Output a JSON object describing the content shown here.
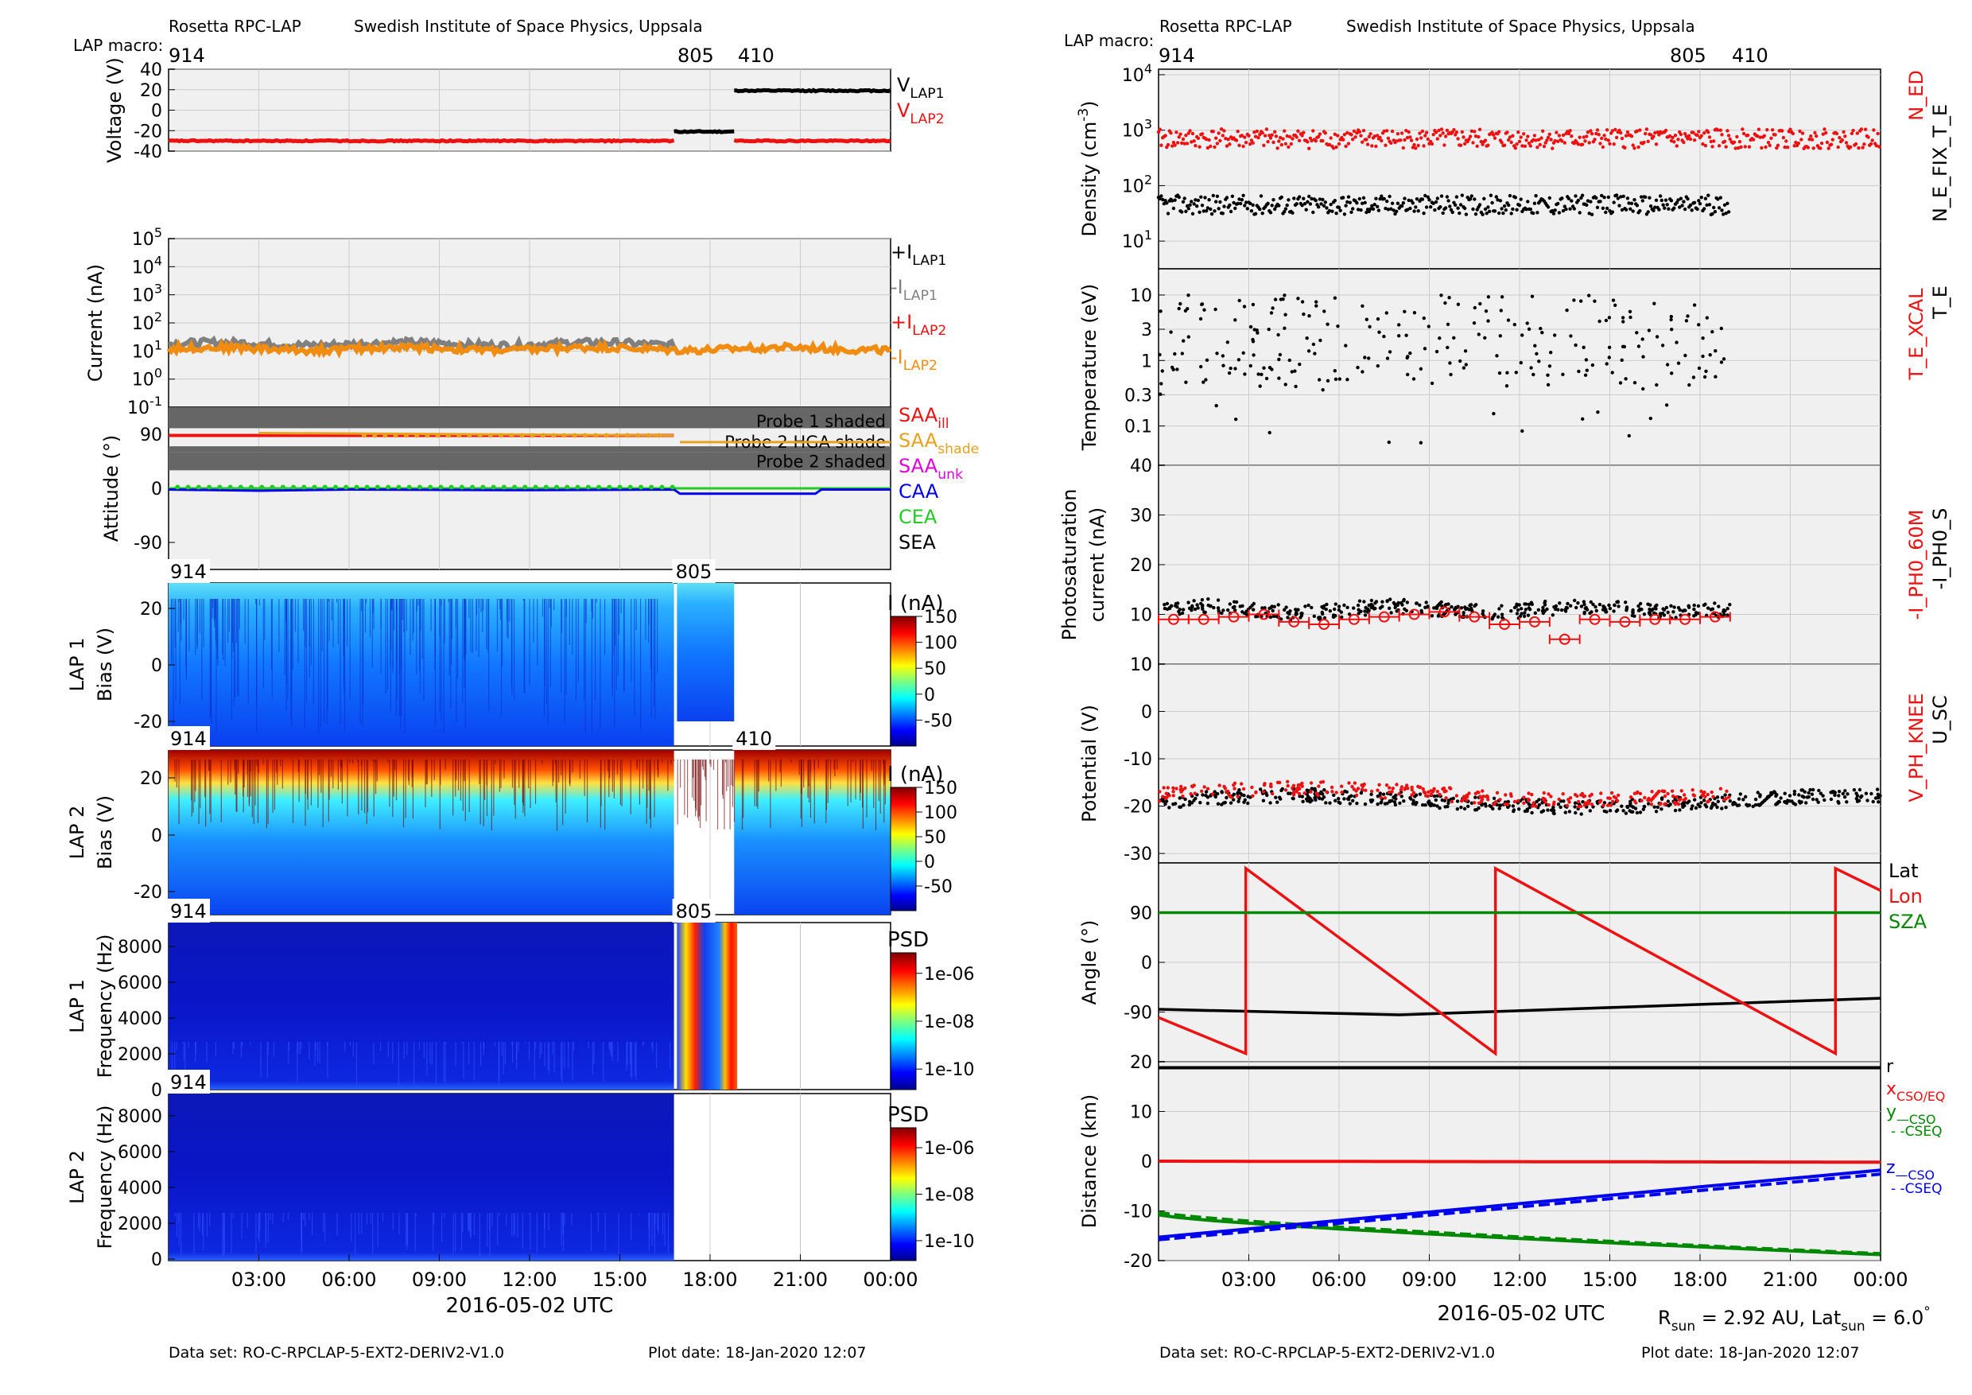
{
  "header": {
    "instrument": "Rosetta RPC-LAP",
    "institute": "Swedish Institute of Space Physics, Uppsala",
    "macro_label": "LAP macro:",
    "macros": [
      {
        "label": "914",
        "t": 0
      },
      {
        "label": "805",
        "t": 16.8
      },
      {
        "label": "410",
        "t": 18.8
      }
    ]
  },
  "footer": {
    "dataset": "Data set: RO-C-RPCLAP-5-EXT2-DERIV2-V1.0",
    "plotdate": "Plot date: 18-Jan-2020 12:07",
    "rsun": "R",
    "rsun_sub": "sun",
    "rsun_val": " = 2.92 AU, Lat",
    "latsun_sub": "sun",
    "latsun_val": " = 6.0",
    "latsun_unit": "°"
  },
  "time_axis": {
    "xlabel": "2016-05-02 UTC",
    "range_hours": [
      0,
      24
    ],
    "ticks": [
      {
        "t": 3,
        "label": "03:00"
      },
      {
        "t": 6,
        "label": "06:00"
      },
      {
        "t": 9,
        "label": "09:00"
      },
      {
        "t": 12,
        "label": "12:00"
      },
      {
        "t": 15,
        "label": "15:00"
      },
      {
        "t": 18,
        "label": "18:00"
      },
      {
        "t": 21,
        "label": "21:00"
      },
      {
        "t": 24,
        "label": "00:00"
      }
    ]
  },
  "colors": {
    "red": "#ee1111",
    "black": "#000000",
    "gray": "#808080",
    "orange": "#f08c10",
    "gold": "#e8a020",
    "magenta": "#dd00dd",
    "blue": "#0000ee",
    "green": "#22cc22",
    "darkgreen": "#008800",
    "panel_bg": "#f0f0f0",
    "shade": "#666666"
  },
  "chart_data": [
    {
      "id": "voltage",
      "type": "scatter",
      "ylabel": "Voltage (V)",
      "ylim": [
        -40,
        40
      ],
      "yticks": [
        "40",
        "20",
        "0",
        "-20",
        "-40"
      ],
      "series": [
        {
          "name": "V_LAP1",
          "label_main": "V",
          "label_sub": "LAP1",
          "segments": [
            {
              "t0": 16.8,
              "t1": 18.8,
              "v": -21
            },
            {
              "t0": 18.8,
              "t1": 24,
              "v": 19
            }
          ]
        },
        {
          "name": "V_LAP2",
          "label_main": "V",
          "label_sub": "LAP2",
          "segments": [
            {
              "t0": 0,
              "t1": 16.8,
              "v": -30
            },
            {
              "t0": 18.8,
              "t1": 24,
              "v": -30
            }
          ]
        }
      ]
    },
    {
      "id": "current",
      "type": "scatter",
      "ylabel": "Current (nA)",
      "yscale": "log",
      "ylim_exp": [
        -1,
        5
      ],
      "yticks": [
        {
          "base": "10",
          "exp": "5"
        },
        {
          "base": "10",
          "exp": "4"
        },
        {
          "base": "10",
          "exp": "3"
        },
        {
          "base": "10",
          "exp": "2"
        },
        {
          "base": "10",
          "exp": "1"
        },
        {
          "base": "10",
          "exp": "0"
        },
        {
          "base": "10",
          "exp": "-1"
        }
      ],
      "series": [
        {
          "name": "+I_LAP1",
          "label_main": "+I",
          "label_sub": "LAP1",
          "t_range": [
            0,
            24
          ],
          "value": 0
        },
        {
          "name": "-I_LAP1",
          "label_main": "-I",
          "label_sub": "LAP1",
          "t_range": [
            0,
            16.8
          ],
          "value": 18
        },
        {
          "name": "+I_LAP2",
          "label_main": "+I",
          "label_sub": "LAP2",
          "t_range": [
            0,
            24
          ],
          "value": 0
        },
        {
          "name": "-I_LAP2",
          "label_main": "-I",
          "label_sub": "LAP2",
          "t_range": [
            0,
            24
          ],
          "value": 12
        }
      ]
    },
    {
      "id": "attitude",
      "type": "line",
      "ylabel": "Attitude (°)",
      "ylim": [
        -135,
        135
      ],
      "yticks": [
        "90",
        "0",
        "-90"
      ],
      "shade_labels": [
        "Probe 1 shaded",
        "Probe 2 HGA shade",
        "Probe 2 shaded"
      ],
      "legend": [
        {
          "main": "SAA",
          "sub": "ill",
          "color": "#ee1111"
        },
        {
          "main": "SAA",
          "sub": "shade",
          "color": "#e8a020"
        },
        {
          "main": "SAA",
          "sub": "unk",
          "color": "#dd00dd"
        },
        {
          "main": "CAA",
          "sub": "",
          "color": "#0000ee"
        },
        {
          "main": "CEA",
          "sub": "",
          "color": "#22cc22"
        },
        {
          "main": "SEA",
          "sub": "",
          "color": "#000000"
        }
      ]
    },
    {
      "id": "lap1_bias",
      "type": "heatmap",
      "ylabel_line1": "LAP 1",
      "ylabel_line2": "Bias (V)",
      "yticks": [
        "20",
        "0",
        "-20"
      ],
      "colorbar_label": "I (nA)",
      "colorbar_ticks": [
        "150",
        "100",
        "50",
        "0",
        "-50"
      ],
      "macro_tags": [
        "914",
        "805"
      ]
    },
    {
      "id": "lap2_bias",
      "type": "heatmap",
      "ylabel_line1": "LAP 2",
      "ylabel_line2": "Bias (V)",
      "yticks": [
        "20",
        "0",
        "-20"
      ],
      "colorbar_label": "I (nA)",
      "colorbar_ticks": [
        "150",
        "100",
        "50",
        "0",
        "-50"
      ],
      "macro_tags": [
        "914",
        "410"
      ]
    },
    {
      "id": "lap1_psd",
      "type": "heatmap",
      "ylabel_line1": "LAP 1",
      "ylabel_line2": "Frequency (Hz)",
      "yticks": [
        "8000",
        "6000",
        "4000",
        "2000",
        "0"
      ],
      "colorbar_label": "PSD",
      "colorbar_ticks": [
        "1e-06",
        "1e-08",
        "1e-10"
      ],
      "macro_tags": [
        "914",
        "805"
      ]
    },
    {
      "id": "lap2_psd",
      "type": "heatmap",
      "ylabel_line1": "LAP 2",
      "ylabel_line2": "Frequency (Hz)",
      "yticks": [
        "8000",
        "6000",
        "4000",
        "2000",
        "0"
      ],
      "colorbar_label": "PSD",
      "colorbar_ticks": [
        "1e-06",
        "1e-08",
        "1e-10"
      ],
      "macro_tags": [
        "914"
      ]
    },
    {
      "id": "density",
      "type": "scatter",
      "ylabel": "Density (cm",
      "ylabel_sup": "-3",
      "ylabel_end": ")",
      "yscale": "log",
      "yticks": [
        {
          "base": "10",
          "exp": "4"
        },
        {
          "base": "10",
          "exp": "3"
        },
        {
          "base": "10",
          "exp": "2"
        },
        {
          "base": "10",
          "exp": "1"
        }
      ],
      "series": [
        {
          "name": "N_ED",
          "t_range": [
            0,
            24
          ],
          "value": 700
        },
        {
          "name": "N_E_FIX_T_E",
          "t_range": [
            0,
            19.0
          ],
          "value": 45
        }
      ]
    },
    {
      "id": "temperature",
      "type": "scatter",
      "ylabel": "Temperature (eV)",
      "yscale": "log",
      "yticks": [
        "10",
        "3",
        "1",
        "0.3",
        "0.1"
      ],
      "series": [
        {
          "name": "T_E_XCAL",
          "t_range": [
            0,
            19.0
          ]
        },
        {
          "name": "T_E",
          "t_range": [
            0,
            19.0
          ],
          "typical": 2
        }
      ]
    },
    {
      "id": "photosaturation",
      "type": "scatter",
      "ylabel_line1": "Photosaturation",
      "ylabel_line2": "current (nA)",
      "ylim": [
        0,
        40
      ],
      "yticks": [
        "40",
        "30",
        "20",
        "10",
        "0"
      ],
      "series": [
        {
          "name": "-I_PH0_60M",
          "t": [
            0.5,
            1.5,
            2.5,
            3.5,
            4.5,
            5.5,
            6.5,
            7.5,
            8.5,
            9.5,
            10.5,
            11.5,
            12.5,
            13.5,
            14.5,
            15.5,
            16.5,
            17.5,
            18.5
          ],
          "values": [
            9,
            9,
            9.5,
            10,
            8.5,
            8,
            9,
            9.5,
            10,
            10.5,
            9.5,
            8,
            8.5,
            5,
            9,
            8.5,
            9,
            9,
            9.5
          ]
        },
        {
          "name": "-I_PH0_S",
          "t_range": [
            0,
            19.0
          ],
          "value": 11
        }
      ]
    },
    {
      "id": "potential",
      "type": "scatter",
      "ylabel": "Potential (V)",
      "ylim": [
        -32,
        10
      ],
      "yticks": [
        "10",
        "0",
        "-10",
        "-20",
        "-30"
      ],
      "series": [
        {
          "name": "V_PH_KNEE",
          "t_range": [
            0,
            19.0
          ],
          "value": -18
        },
        {
          "name": "U_SC",
          "t_range": [
            0,
            24
          ],
          "value": -19
        }
      ]
    },
    {
      "id": "angle",
      "type": "line",
      "ylabel": "Angle (°)",
      "ylim": [
        -180,
        180
      ],
      "yticks": [
        "90",
        "0",
        "-90"
      ],
      "series": [
        {
          "name": "Lat",
          "t": [
            0,
            8,
            24
          ],
          "values": [
            -85,
            -95,
            -65
          ]
        },
        {
          "name": "Lon",
          "t": [
            0,
            2.9,
            2.9,
            11.2,
            11.2,
            22.5,
            22.5,
            24
          ],
          "values": [
            -100,
            -165,
            170,
            -165,
            170,
            -165,
            170,
            130
          ]
        },
        {
          "name": "SZA",
          "t": [
            0,
            24
          ],
          "values": [
            90,
            90
          ]
        }
      ]
    },
    {
      "id": "distance",
      "type": "line",
      "ylabel": "Distance (km)",
      "ylim": [
        -20,
        20
      ],
      "yticks": [
        "20",
        "10",
        "0",
        "-10",
        "-20"
      ],
      "series": [
        {
          "name": "r",
          "t": [
            0,
            24
          ],
          "values": [
            18.8,
            18.8
          ]
        },
        {
          "name": "x_CSO/EQ",
          "t": [
            0,
            24
          ],
          "values": [
            0,
            -0.2
          ]
        },
        {
          "name": "y_CSO",
          "t": [
            0,
            24
          ],
          "values": [
            -10.8,
            -18.8
          ]
        },
        {
          "name": "y_CSEQ",
          "t": [
            0,
            24
          ],
          "values": [
            -10.3,
            -18.6
          ]
        },
        {
          "name": "z_CSO",
          "t": [
            0,
            24
          ],
          "values": [
            -15.3,
            -1.8
          ]
        },
        {
          "name": "z_CSEQ",
          "t": [
            0,
            24
          ],
          "values": [
            -15.8,
            -2.6
          ]
        }
      ],
      "legend_right": [
        {
          "main": "r",
          "sub": "",
          "color": "#000000"
        },
        {
          "main": "x",
          "sub": "CSO/EQ",
          "color": "#ee1111"
        },
        {
          "main": "y",
          "sub": "—CSO",
          "color": "#008800"
        },
        {
          "main": "",
          "sub": "- -CSEQ",
          "color": "#008800"
        },
        {
          "main": "z",
          "sub": "—CSO",
          "color": "#0000ee"
        },
        {
          "main": "",
          "sub": "- -CSEQ",
          "color": "#0000ee"
        }
      ]
    }
  ]
}
